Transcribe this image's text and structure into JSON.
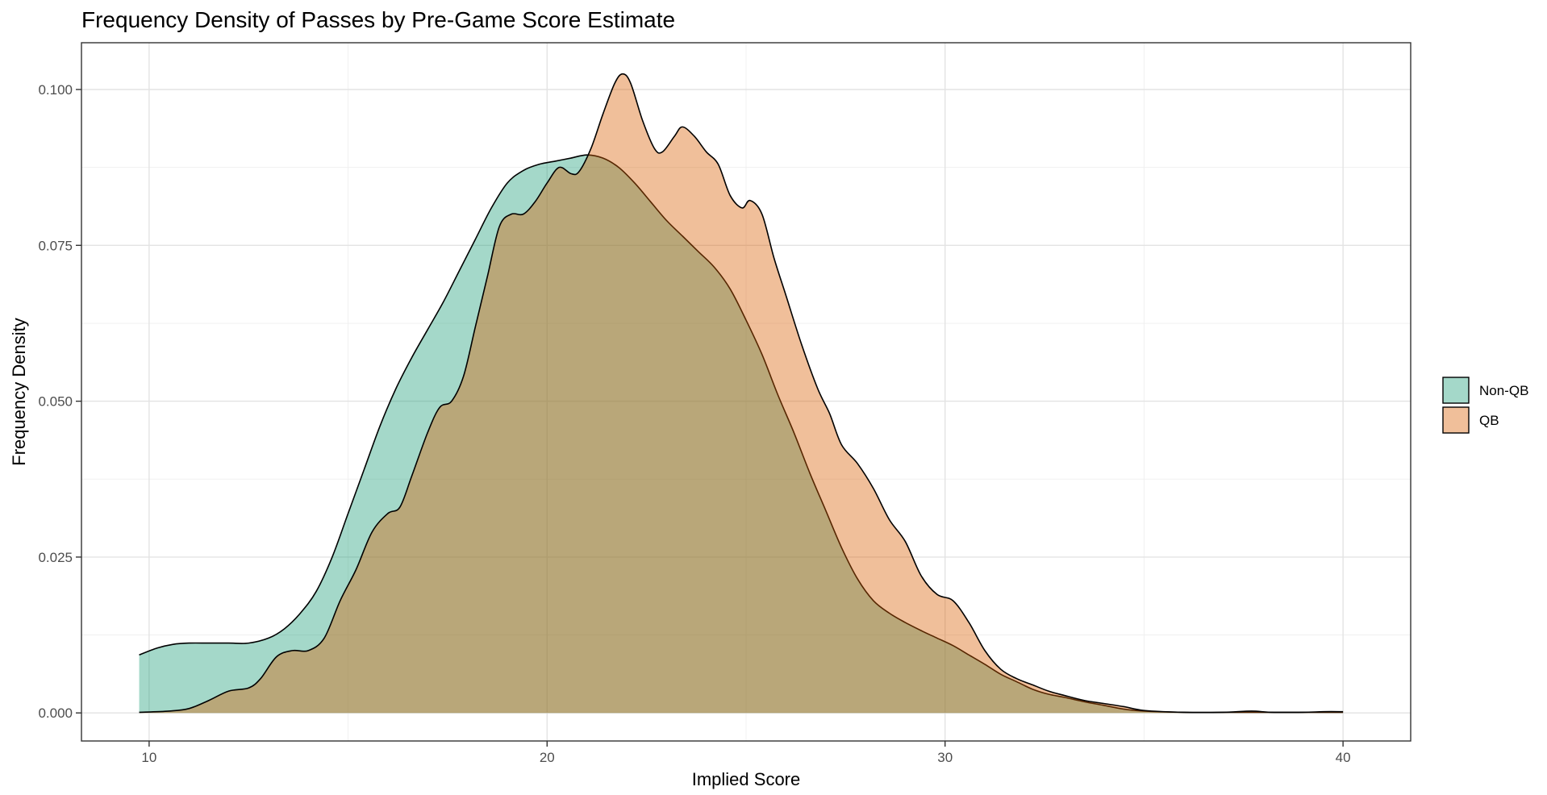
{
  "chart_data": {
    "type": "area",
    "title": "Frequency Density of Passes by Pre-Game Score Estimate",
    "xlabel": "Implied Score",
    "ylabel": "Frequency Density",
    "xlim": [
      8.3,
      41.7
    ],
    "ylim": [
      -0.0045,
      0.1075
    ],
    "x_ticks": [
      10,
      20,
      30,
      40
    ],
    "x_tick_labels": [
      "10",
      "20",
      "30",
      "40"
    ],
    "y_ticks": [
      0.0,
      0.025,
      0.05,
      0.075,
      0.1
    ],
    "y_tick_labels": [
      "0.000",
      "0.025",
      "0.050",
      "0.075",
      "0.100"
    ],
    "grid": true,
    "legend_position": "right",
    "series": [
      {
        "name": "Non-QB",
        "color": "#1b9e77",
        "points": [
          [
            9.75,
            0.0093
          ],
          [
            10.2,
            0.0104
          ],
          [
            10.6,
            0.011
          ],
          [
            11.0,
            0.0112
          ],
          [
            11.5,
            0.0112
          ],
          [
            12.0,
            0.0112
          ],
          [
            12.5,
            0.0112
          ],
          [
            13.0,
            0.012
          ],
          [
            13.4,
            0.0135
          ],
          [
            13.8,
            0.016
          ],
          [
            14.2,
            0.0195
          ],
          [
            14.6,
            0.025
          ],
          [
            15.0,
            0.032
          ],
          [
            15.4,
            0.039
          ],
          [
            15.8,
            0.046
          ],
          [
            16.2,
            0.052
          ],
          [
            16.6,
            0.057
          ],
          [
            17.0,
            0.0615
          ],
          [
            17.4,
            0.066
          ],
          [
            17.8,
            0.071
          ],
          [
            18.2,
            0.076
          ],
          [
            18.6,
            0.081
          ],
          [
            19.0,
            0.085
          ],
          [
            19.4,
            0.087
          ],
          [
            19.8,
            0.088
          ],
          [
            20.2,
            0.0885
          ],
          [
            20.6,
            0.089
          ],
          [
            21.0,
            0.0895
          ],
          [
            21.4,
            0.089
          ],
          [
            21.8,
            0.0875
          ],
          [
            22.2,
            0.085
          ],
          [
            22.6,
            0.082
          ],
          [
            23.0,
            0.079
          ],
          [
            23.4,
            0.0765
          ],
          [
            23.8,
            0.074
          ],
          [
            24.2,
            0.0715
          ],
          [
            24.6,
            0.068
          ],
          [
            25.0,
            0.063
          ],
          [
            25.4,
            0.0575
          ],
          [
            25.8,
            0.051
          ],
          [
            26.2,
            0.045
          ],
          [
            26.6,
            0.0385
          ],
          [
            27.0,
            0.0325
          ],
          [
            27.4,
            0.0265
          ],
          [
            27.8,
            0.0215
          ],
          [
            28.2,
            0.018
          ],
          [
            28.6,
            0.016
          ],
          [
            29.0,
            0.0145
          ],
          [
            29.4,
            0.0132
          ],
          [
            29.8,
            0.012
          ],
          [
            30.2,
            0.0108
          ],
          [
            30.6,
            0.0093
          ],
          [
            31.0,
            0.0078
          ],
          [
            31.4,
            0.0062
          ],
          [
            31.8,
            0.005
          ],
          [
            32.2,
            0.0038
          ],
          [
            32.6,
            0.003
          ],
          [
            33.0,
            0.0025
          ],
          [
            33.5,
            0.0018
          ],
          [
            34.0,
            0.0012
          ],
          [
            34.5,
            0.0006
          ],
          [
            35.0,
            0.0003
          ],
          [
            36.0,
            0.0001
          ],
          [
            37.0,
            0.0001
          ],
          [
            38.0,
            0.0001
          ],
          [
            39.0,
            0.0001
          ],
          [
            40.0,
            0.0001
          ]
        ]
      },
      {
        "name": "QB",
        "color": "#d95f02",
        "points": [
          [
            9.75,
            0.0001
          ],
          [
            10.5,
            0.0003
          ],
          [
            11.0,
            0.0007
          ],
          [
            11.5,
            0.002
          ],
          [
            12.0,
            0.0035
          ],
          [
            12.5,
            0.004
          ],
          [
            12.8,
            0.0055
          ],
          [
            13.2,
            0.009
          ],
          [
            13.6,
            0.01
          ],
          [
            14.0,
            0.01
          ],
          [
            14.4,
            0.012
          ],
          [
            14.8,
            0.018
          ],
          [
            15.2,
            0.023
          ],
          [
            15.6,
            0.029
          ],
          [
            16.0,
            0.032
          ],
          [
            16.3,
            0.033
          ],
          [
            16.6,
            0.038
          ],
          [
            17.0,
            0.045
          ],
          [
            17.3,
            0.049
          ],
          [
            17.6,
            0.05
          ],
          [
            17.9,
            0.054
          ],
          [
            18.2,
            0.062
          ],
          [
            18.5,
            0.07
          ],
          [
            18.8,
            0.078
          ],
          [
            19.1,
            0.08
          ],
          [
            19.4,
            0.08
          ],
          [
            19.7,
            0.082
          ],
          [
            20.0,
            0.085
          ],
          [
            20.3,
            0.0875
          ],
          [
            20.6,
            0.0865
          ],
          [
            20.8,
            0.0868
          ],
          [
            21.1,
            0.0905
          ],
          [
            21.4,
            0.096
          ],
          [
            21.7,
            0.101
          ],
          [
            21.9,
            0.1025
          ],
          [
            22.1,
            0.101
          ],
          [
            22.4,
            0.095
          ],
          [
            22.7,
            0.0905
          ],
          [
            22.9,
            0.09
          ],
          [
            23.2,
            0.0925
          ],
          [
            23.4,
            0.094
          ],
          [
            23.7,
            0.0925
          ],
          [
            24.0,
            0.09
          ],
          [
            24.3,
            0.088
          ],
          [
            24.6,
            0.083
          ],
          [
            24.9,
            0.081
          ],
          [
            25.1,
            0.0822
          ],
          [
            25.4,
            0.08
          ],
          [
            25.7,
            0.073
          ],
          [
            26.0,
            0.067
          ],
          [
            26.4,
            0.059
          ],
          [
            26.8,
            0.052
          ],
          [
            27.1,
            0.048
          ],
          [
            27.4,
            0.043
          ],
          [
            27.8,
            0.04
          ],
          [
            28.2,
            0.036
          ],
          [
            28.6,
            0.031
          ],
          [
            29.0,
            0.0275
          ],
          [
            29.4,
            0.022
          ],
          [
            29.8,
            0.019
          ],
          [
            30.2,
            0.018
          ],
          [
            30.6,
            0.0145
          ],
          [
            31.0,
            0.01
          ],
          [
            31.4,
            0.007
          ],
          [
            31.8,
            0.0055
          ],
          [
            32.2,
            0.0045
          ],
          [
            32.6,
            0.0035
          ],
          [
            33.0,
            0.0028
          ],
          [
            33.5,
            0.002
          ],
          [
            34.0,
            0.0015
          ],
          [
            34.5,
            0.001
          ],
          [
            35.0,
            0.0004
          ],
          [
            36.0,
            0.0001
          ],
          [
            37.0,
            0.0001
          ],
          [
            37.7,
            0.0003
          ],
          [
            38.2,
            0.0001
          ],
          [
            39.0,
            0.0001
          ],
          [
            39.5,
            0.0002
          ],
          [
            40.0,
            0.0002
          ]
        ]
      }
    ]
  }
}
